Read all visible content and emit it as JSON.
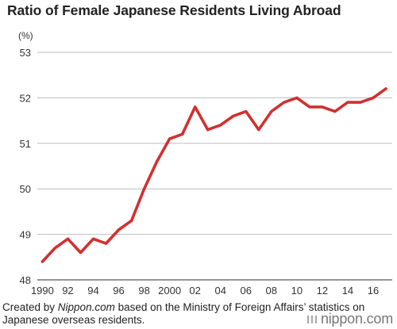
{
  "title": "Ratio of Female Japanese Residents Living Abroad",
  "source": {
    "prefix": "Created by ",
    "site": "Nippon.com",
    "suffix": " based on the Ministry of Foreign Affairs’ statistics on Japanese overseas residents."
  },
  "logo_text": "nippon.com",
  "colors": {
    "line": "#d32f2f",
    "grid": "#bdbdbd",
    "text": "#333333"
  },
  "chart_data": {
    "type": "line",
    "title": "Ratio of Female Japanese Residents Living Abroad",
    "ylabel": "(%)",
    "xlabel": "",
    "ylim": [
      48,
      53
    ],
    "yticks": [
      48,
      49,
      50,
      51,
      52,
      53
    ],
    "grid": "horizontal",
    "legend": "none",
    "x": [
      1990,
      1991,
      1992,
      1993,
      1994,
      1995,
      1996,
      1997,
      1998,
      1999,
      2000,
      2001,
      2002,
      2003,
      2004,
      2005,
      2006,
      2007,
      2008,
      2009,
      2010,
      2011,
      2012,
      2013,
      2014,
      2015,
      2016,
      2017
    ],
    "xticks": [
      {
        "x": 1990,
        "label": "1990"
      },
      {
        "x": 1992,
        "label": "92"
      },
      {
        "x": 1994,
        "label": "94"
      },
      {
        "x": 1996,
        "label": "96"
      },
      {
        "x": 1998,
        "label": "98"
      },
      {
        "x": 2000,
        "label": "2000"
      },
      {
        "x": 2002,
        "label": "02"
      },
      {
        "x": 2004,
        "label": "04"
      },
      {
        "x": 2006,
        "label": "06"
      },
      {
        "x": 2008,
        "label": "08"
      },
      {
        "x": 2010,
        "label": "10"
      },
      {
        "x": 2012,
        "label": "12"
      },
      {
        "x": 2014,
        "label": "14"
      },
      {
        "x": 2016,
        "label": "16"
      }
    ],
    "series": [
      {
        "values": [
          48.4,
          48.7,
          48.9,
          48.6,
          48.9,
          48.8,
          49.1,
          49.3,
          50.0,
          50.6,
          51.1,
          51.2,
          51.8,
          51.3,
          51.4,
          51.6,
          51.7,
          51.3,
          51.7,
          51.9,
          52.0,
          51.8,
          51.8,
          51.7,
          51.9,
          51.9,
          52.0,
          52.2
        ]
      }
    ]
  }
}
